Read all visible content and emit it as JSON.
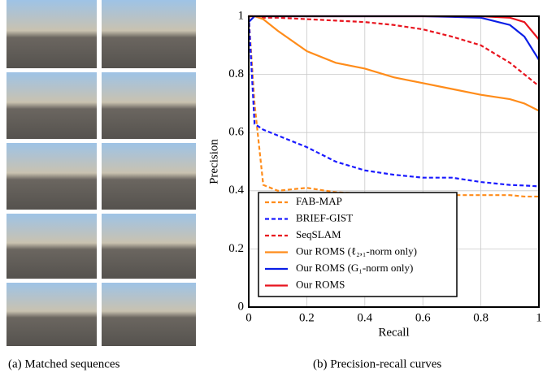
{
  "captions": [
    "(a) Matched sequences",
    "(b) Precision-recall curves"
  ],
  "chart_data": {
    "type": "line",
    "xlabel": "Recall",
    "ylabel": "Precision",
    "x": [
      0,
      0.02,
      0.05,
      0.1,
      0.2,
      0.3,
      0.4,
      0.5,
      0.6,
      0.7,
      0.8,
      0.9,
      0.95,
      1
    ],
    "series": [
      {
        "name": "FAB-MAP",
        "color": "#ff8c1a",
        "dash": true,
        "values": [
          1,
          0.7,
          0.42,
          0.4,
          0.41,
          0.395,
          0.39,
          0.385,
          0.385,
          0.385,
          0.385,
          0.385,
          0.38,
          0.38
        ]
      },
      {
        "name": "BRIEF-GIST",
        "color": "#1a1aff",
        "dash": true,
        "values": [
          1,
          0.63,
          0.61,
          0.59,
          0.55,
          0.5,
          0.47,
          0.455,
          0.445,
          0.445,
          0.43,
          0.42,
          0.418,
          0.415
        ]
      },
      {
        "name": "SeqSLAM",
        "color": "#e8141e",
        "dash": true,
        "values": [
          1,
          1,
          0.995,
          0.995,
          0.99,
          0.985,
          0.98,
          0.97,
          0.955,
          0.93,
          0.9,
          0.84,
          0.8,
          0.76
        ]
      },
      {
        "name": "Our ROMS (ℓ₂,₁-norm only)",
        "color": "#ff8c1a",
        "dash": false,
        "values": [
          1,
          1,
          0.99,
          0.95,
          0.88,
          0.84,
          0.82,
          0.79,
          0.77,
          0.75,
          0.73,
          0.715,
          0.7,
          0.675
        ]
      },
      {
        "name": "Our ROMS (G₁-norm only)",
        "color": "#0a1ee6",
        "dash": false,
        "values": [
          0.98,
          1,
          1,
          1,
          1,
          1,
          1,
          1,
          1,
          0.998,
          0.995,
          0.97,
          0.93,
          0.85
        ]
      },
      {
        "name": "Our ROMS",
        "color": "#e8141e",
        "dash": false,
        "values": [
          1,
          1,
          1,
          1,
          1,
          1,
          1,
          1,
          1,
          1,
          1,
          0.995,
          0.98,
          0.92
        ]
      }
    ],
    "xlim": [
      0,
      1
    ],
    "ylim": [
      0,
      1
    ],
    "xticks": [
      0,
      0.2,
      0.4,
      0.6,
      0.8,
      1
    ],
    "yticks": [
      0,
      0.2,
      0.4,
      0.6,
      0.8,
      1
    ],
    "grid": true,
    "legend": "lower left"
  }
}
